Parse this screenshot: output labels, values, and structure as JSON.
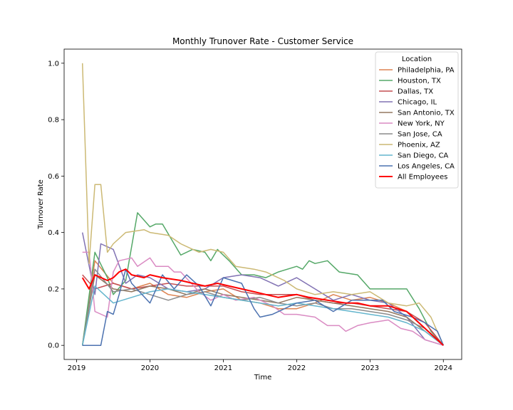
{
  "chart_data": {
    "type": "line",
    "title": "Monthly Trunover Rate - Customer Service",
    "xlabel": "Time",
    "ylabel": "Turnover Rate",
    "xlim": [
      2018.83,
      2024.25
    ],
    "ylim": [
      -0.05,
      1.05
    ],
    "x_ticks": [
      2019,
      2020,
      2021,
      2022,
      2023,
      2024
    ],
    "y_ticks": [
      0.0,
      0.2,
      0.4,
      0.6,
      0.8,
      1.0
    ],
    "y_tick_labels": [
      "0.0",
      "0.2",
      "0.4",
      "0.6",
      "0.8",
      "1.0"
    ],
    "grid": false,
    "legend": {
      "title": "Location",
      "position": "top-right"
    },
    "series": [
      {
        "name": "Philadelphia, PA",
        "color": "#dd8452",
        "width": 1.5,
        "points": [
          [
            2019.08,
            0.0
          ],
          [
            2019.25,
            0.3
          ],
          [
            2019.5,
            0.22
          ],
          [
            2019.75,
            0.2
          ],
          [
            2020.0,
            0.22
          ],
          [
            2020.25,
            0.18
          ],
          [
            2020.5,
            0.17
          ],
          [
            2020.75,
            0.19
          ],
          [
            2021.0,
            0.2
          ],
          [
            2021.25,
            0.16
          ],
          [
            2021.5,
            0.15
          ],
          [
            2021.75,
            0.13
          ],
          [
            2022.0,
            0.13
          ],
          [
            2022.25,
            0.15
          ],
          [
            2022.5,
            0.18
          ],
          [
            2022.75,
            0.16
          ],
          [
            2023.0,
            0.17
          ],
          [
            2023.25,
            0.15
          ],
          [
            2023.5,
            0.12
          ],
          [
            2023.75,
            0.06
          ],
          [
            2024.0,
            0.0
          ]
        ]
      },
      {
        "name": "Houston, TX",
        "color": "#55a868",
        "width": 1.5,
        "points": [
          [
            2019.08,
            0.0
          ],
          [
            2019.25,
            0.33
          ],
          [
            2019.42,
            0.24
          ],
          [
            2019.5,
            0.18
          ],
          [
            2019.67,
            0.23
          ],
          [
            2019.83,
            0.47
          ],
          [
            2020.0,
            0.42
          ],
          [
            2020.08,
            0.43
          ],
          [
            2020.17,
            0.43
          ],
          [
            2020.42,
            0.32
          ],
          [
            2020.58,
            0.34
          ],
          [
            2020.75,
            0.33
          ],
          [
            2020.83,
            0.3
          ],
          [
            2020.92,
            0.34
          ],
          [
            2021.08,
            0.3
          ],
          [
            2021.25,
            0.25
          ],
          [
            2021.42,
            0.25
          ],
          [
            2021.58,
            0.24
          ],
          [
            2021.75,
            0.26
          ],
          [
            2022.0,
            0.28
          ],
          [
            2022.08,
            0.27
          ],
          [
            2022.17,
            0.3
          ],
          [
            2022.25,
            0.29
          ],
          [
            2022.42,
            0.3
          ],
          [
            2022.58,
            0.26
          ],
          [
            2022.83,
            0.25
          ],
          [
            2023.0,
            0.2
          ],
          [
            2023.25,
            0.2
          ],
          [
            2023.5,
            0.2
          ],
          [
            2023.67,
            0.13
          ],
          [
            2023.83,
            0.05
          ],
          [
            2024.0,
            0.0
          ]
        ]
      },
      {
        "name": "Dallas, TX",
        "color": "#c44e52",
        "width": 1.5,
        "points": [
          [
            2019.08,
            0.25
          ],
          [
            2019.25,
            0.2
          ],
          [
            2019.5,
            0.22
          ],
          [
            2019.75,
            0.2
          ],
          [
            2020.0,
            0.21
          ],
          [
            2020.25,
            0.22
          ],
          [
            2020.5,
            0.21
          ],
          [
            2020.75,
            0.21
          ],
          [
            2021.0,
            0.21
          ],
          [
            2021.25,
            0.19
          ],
          [
            2021.5,
            0.18
          ],
          [
            2021.75,
            0.18
          ],
          [
            2022.0,
            0.18
          ],
          [
            2022.25,
            0.16
          ],
          [
            2022.5,
            0.15
          ],
          [
            2022.75,
            0.15
          ],
          [
            2023.0,
            0.14
          ],
          [
            2023.25,
            0.13
          ],
          [
            2023.5,
            0.12
          ],
          [
            2023.75,
            0.08
          ],
          [
            2024.0,
            0.0
          ]
        ]
      },
      {
        "name": "Chicago, IL",
        "color": "#8172b3",
        "width": 1.5,
        "points": [
          [
            2019.08,
            0.4
          ],
          [
            2019.25,
            0.18
          ],
          [
            2019.33,
            0.36
          ],
          [
            2019.5,
            0.34
          ],
          [
            2019.67,
            0.22
          ],
          [
            2019.83,
            0.25
          ],
          [
            2020.0,
            0.24
          ],
          [
            2020.25,
            0.2
          ],
          [
            2020.5,
            0.19
          ],
          [
            2020.75,
            0.2
          ],
          [
            2021.0,
            0.24
          ],
          [
            2021.25,
            0.25
          ],
          [
            2021.5,
            0.24
          ],
          [
            2021.75,
            0.21
          ],
          [
            2022.0,
            0.24
          ],
          [
            2022.25,
            0.2
          ],
          [
            2022.5,
            0.16
          ],
          [
            2022.75,
            0.18
          ],
          [
            2023.0,
            0.16
          ],
          [
            2023.25,
            0.15
          ],
          [
            2023.5,
            0.1
          ],
          [
            2023.75,
            0.02
          ],
          [
            2024.0,
            0.0
          ]
        ]
      },
      {
        "name": "San Antonio, TX",
        "color": "#937860",
        "width": 1.5,
        "points": [
          [
            2019.08,
            0.0
          ],
          [
            2019.25,
            0.25
          ],
          [
            2019.5,
            0.2
          ],
          [
            2019.75,
            0.19
          ],
          [
            2020.0,
            0.21
          ],
          [
            2020.25,
            0.2
          ],
          [
            2020.5,
            0.18
          ],
          [
            2020.75,
            0.2
          ],
          [
            2021.0,
            0.18
          ],
          [
            2021.25,
            0.17
          ],
          [
            2021.5,
            0.16
          ],
          [
            2021.75,
            0.15
          ],
          [
            2022.0,
            0.17
          ],
          [
            2022.25,
            0.16
          ],
          [
            2022.5,
            0.15
          ],
          [
            2022.75,
            0.14
          ],
          [
            2023.0,
            0.13
          ],
          [
            2023.25,
            0.12
          ],
          [
            2023.5,
            0.1
          ],
          [
            2023.75,
            0.05
          ],
          [
            2024.0,
            0.0
          ]
        ]
      },
      {
        "name": "New York, NY",
        "color": "#da8bc3",
        "width": 1.5,
        "points": [
          [
            2019.08,
            0.33
          ],
          [
            2019.17,
            0.33
          ],
          [
            2019.25,
            0.12
          ],
          [
            2019.42,
            0.1
          ],
          [
            2019.5,
            0.26
          ],
          [
            2019.58,
            0.3
          ],
          [
            2019.75,
            0.31
          ],
          [
            2019.83,
            0.28
          ],
          [
            2020.0,
            0.31
          ],
          [
            2020.08,
            0.28
          ],
          [
            2020.25,
            0.28
          ],
          [
            2020.33,
            0.26
          ],
          [
            2020.42,
            0.26
          ],
          [
            2020.67,
            0.19
          ],
          [
            2020.83,
            0.16
          ],
          [
            2021.0,
            0.18
          ],
          [
            2021.17,
            0.16
          ],
          [
            2021.42,
            0.17
          ],
          [
            2021.67,
            0.14
          ],
          [
            2021.83,
            0.11
          ],
          [
            2022.0,
            0.11
          ],
          [
            2022.25,
            0.1
          ],
          [
            2022.42,
            0.07
          ],
          [
            2022.58,
            0.07
          ],
          [
            2022.67,
            0.05
          ],
          [
            2022.83,
            0.07
          ],
          [
            2023.0,
            0.08
          ],
          [
            2023.25,
            0.09
          ],
          [
            2023.42,
            0.06
          ],
          [
            2023.58,
            0.05
          ],
          [
            2023.75,
            0.02
          ],
          [
            2024.0,
            0.0
          ]
        ]
      },
      {
        "name": "San Jose, CA",
        "color": "#8c8c8c",
        "width": 1.5,
        "points": [
          [
            2019.08,
            0.0
          ],
          [
            2019.25,
            0.27
          ],
          [
            2019.5,
            0.19
          ],
          [
            2019.75,
            0.2
          ],
          [
            2020.0,
            0.18
          ],
          [
            2020.25,
            0.16
          ],
          [
            2020.5,
            0.18
          ],
          [
            2020.75,
            0.19
          ],
          [
            2021.0,
            0.17
          ],
          [
            2021.25,
            0.16
          ],
          [
            2021.5,
            0.17
          ],
          [
            2021.75,
            0.15
          ],
          [
            2022.0,
            0.14
          ],
          [
            2022.25,
            0.15
          ],
          [
            2022.5,
            0.13
          ],
          [
            2022.75,
            0.13
          ],
          [
            2023.0,
            0.12
          ],
          [
            2023.25,
            0.11
          ],
          [
            2023.5,
            0.09
          ],
          [
            2023.75,
            0.06
          ],
          [
            2024.0,
            0.0
          ]
        ]
      },
      {
        "name": "Phoenix, AZ",
        "color": "#ccb974",
        "width": 1.5,
        "points": [
          [
            2019.08,
            1.0
          ],
          [
            2019.17,
            0.29
          ],
          [
            2019.25,
            0.57
          ],
          [
            2019.33,
            0.57
          ],
          [
            2019.42,
            0.33
          ],
          [
            2019.5,
            0.36
          ],
          [
            2019.67,
            0.4
          ],
          [
            2019.92,
            0.41
          ],
          [
            2020.0,
            0.4
          ],
          [
            2020.25,
            0.39
          ],
          [
            2020.42,
            0.36
          ],
          [
            2020.67,
            0.33
          ],
          [
            2020.83,
            0.34
          ],
          [
            2021.0,
            0.33
          ],
          [
            2021.17,
            0.28
          ],
          [
            2021.42,
            0.27
          ],
          [
            2021.58,
            0.26
          ],
          [
            2021.83,
            0.23
          ],
          [
            2022.0,
            0.2
          ],
          [
            2022.25,
            0.18
          ],
          [
            2022.5,
            0.19
          ],
          [
            2022.75,
            0.18
          ],
          [
            2023.0,
            0.19
          ],
          [
            2023.25,
            0.15
          ],
          [
            2023.5,
            0.14
          ],
          [
            2023.67,
            0.15
          ],
          [
            2023.83,
            0.1
          ],
          [
            2024.0,
            0.0
          ]
        ]
      },
      {
        "name": "San Diego, CA",
        "color": "#64b5cd",
        "width": 1.5,
        "points": [
          [
            2019.08,
            0.0
          ],
          [
            2019.25,
            0.21
          ],
          [
            2019.5,
            0.15
          ],
          [
            2019.75,
            0.17
          ],
          [
            2020.0,
            0.19
          ],
          [
            2020.25,
            0.2
          ],
          [
            2020.5,
            0.19
          ],
          [
            2020.75,
            0.18
          ],
          [
            2021.0,
            0.17
          ],
          [
            2021.25,
            0.16
          ],
          [
            2021.5,
            0.15
          ],
          [
            2021.75,
            0.14
          ],
          [
            2022.0,
            0.15
          ],
          [
            2022.25,
            0.14
          ],
          [
            2022.5,
            0.13
          ],
          [
            2022.75,
            0.12
          ],
          [
            2023.0,
            0.11
          ],
          [
            2023.25,
            0.1
          ],
          [
            2023.5,
            0.08
          ],
          [
            2023.75,
            0.05
          ],
          [
            2024.0,
            0.0
          ]
        ]
      },
      {
        "name": "Los Angeles, CA",
        "color": "#4c72b0",
        "width": 1.5,
        "points": [
          [
            2019.08,
            0.0
          ],
          [
            2019.25,
            0.0
          ],
          [
            2019.33,
            0.0
          ],
          [
            2019.42,
            0.12
          ],
          [
            2019.5,
            0.11
          ],
          [
            2019.58,
            0.18
          ],
          [
            2019.67,
            0.27
          ],
          [
            2019.75,
            0.22
          ],
          [
            2020.0,
            0.15
          ],
          [
            2020.17,
            0.25
          ],
          [
            2020.33,
            0.2
          ],
          [
            2020.5,
            0.25
          ],
          [
            2020.67,
            0.21
          ],
          [
            2020.83,
            0.14
          ],
          [
            2021.0,
            0.24
          ],
          [
            2021.25,
            0.22
          ],
          [
            2021.42,
            0.13
          ],
          [
            2021.5,
            0.1
          ],
          [
            2021.67,
            0.11
          ],
          [
            2022.0,
            0.15
          ],
          [
            2022.25,
            0.16
          ],
          [
            2022.5,
            0.12
          ],
          [
            2022.75,
            0.16
          ],
          [
            2023.0,
            0.16
          ],
          [
            2023.17,
            0.16
          ],
          [
            2023.33,
            0.12
          ],
          [
            2023.58,
            0.1
          ],
          [
            2023.75,
            0.08
          ],
          [
            2023.92,
            0.05
          ],
          [
            2024.0,
            0.0
          ]
        ]
      },
      {
        "name": "All Employees",
        "color": "#ff0000",
        "width": 2,
        "points": [
          [
            2019.08,
            0.24
          ],
          [
            2019.17,
            0.2
          ],
          [
            2019.25,
            0.25
          ],
          [
            2019.42,
            0.23
          ],
          [
            2019.5,
            0.24
          ],
          [
            2019.58,
            0.26
          ],
          [
            2019.67,
            0.27
          ],
          [
            2019.75,
            0.25
          ],
          [
            2019.92,
            0.24
          ],
          [
            2020.0,
            0.25
          ],
          [
            2020.17,
            0.24
          ],
          [
            2020.42,
            0.23
          ],
          [
            2020.58,
            0.22
          ],
          [
            2020.75,
            0.21
          ],
          [
            2020.92,
            0.22
          ],
          [
            2021.08,
            0.21
          ],
          [
            2021.25,
            0.2
          ],
          [
            2021.42,
            0.19
          ],
          [
            2021.58,
            0.18
          ],
          [
            2021.75,
            0.17
          ],
          [
            2022.0,
            0.18
          ],
          [
            2022.17,
            0.17
          ],
          [
            2022.42,
            0.16
          ],
          [
            2022.67,
            0.15
          ],
          [
            2022.83,
            0.15
          ],
          [
            2023.0,
            0.14
          ],
          [
            2023.25,
            0.14
          ],
          [
            2023.5,
            0.12
          ],
          [
            2023.75,
            0.06
          ],
          [
            2024.0,
            0.0
          ]
        ]
      }
    ]
  }
}
